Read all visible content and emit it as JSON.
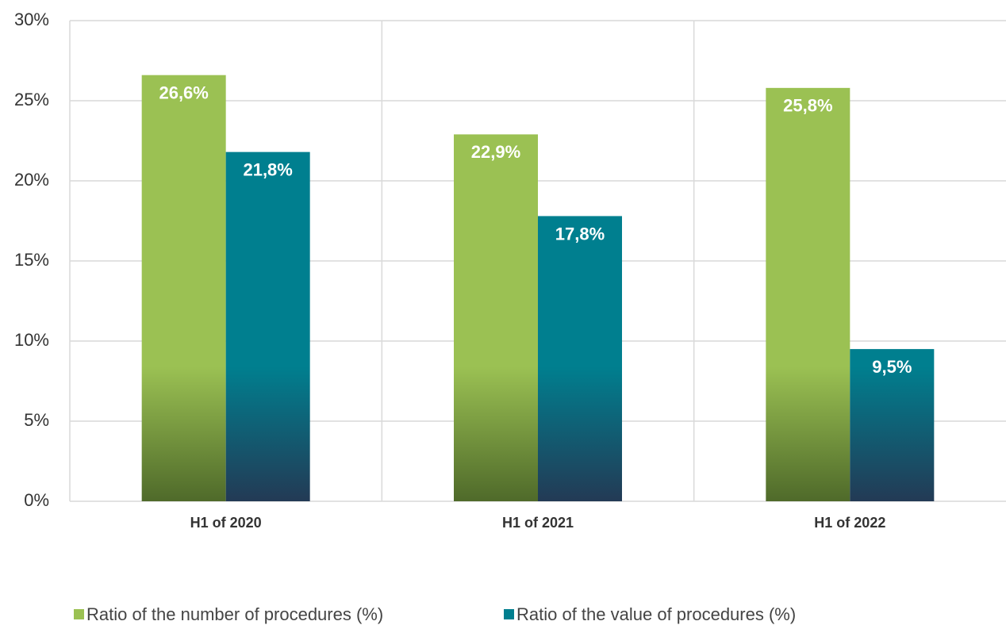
{
  "chart_data": {
    "type": "bar",
    "categories": [
      "H1 of 2020",
      "H1 of 2021",
      "H1 of 2022"
    ],
    "series": [
      {
        "name": "Ratio of the number of procedures (%)",
        "color": "#9bc153",
        "values": [
          26.6,
          22.9,
          25.8
        ],
        "value_labels": [
          "26,6%",
          "22,9%",
          "25,8%"
        ]
      },
      {
        "name": "Ratio of the value of procedures (%)",
        "color": "#007f8f",
        "values": [
          21.8,
          17.8,
          9.5
        ],
        "value_labels": [
          "21,8%",
          "17,8%",
          "9,5%"
        ]
      }
    ],
    "ylim": [
      0,
      30
    ],
    "yticks": [
      {
        "value": 0,
        "label": "0%"
      },
      {
        "value": 5,
        "label": "5%"
      },
      {
        "value": 10,
        "label": "10%"
      },
      {
        "value": 15,
        "label": "15%"
      },
      {
        "value": 20,
        "label": "20%"
      },
      {
        "value": 25,
        "label": "25%"
      },
      {
        "value": 30,
        "label": "30%"
      }
    ],
    "grid": true,
    "legend": "bottom"
  }
}
